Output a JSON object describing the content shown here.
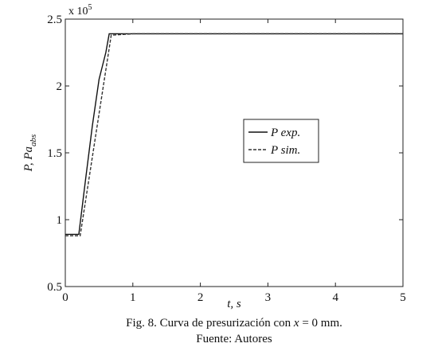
{
  "chart_data": {
    "type": "line",
    "xlabel": "t, s",
    "ylabel": "P, Pa",
    "ylabel_sub": "abs",
    "y_multiplier": "x 10",
    "y_multiplier_exp": "5",
    "xlim": [
      0,
      5
    ],
    "xticks": [
      0,
      1,
      2,
      3,
      4,
      5
    ],
    "ylim": [
      0.5,
      2.5
    ],
    "yticks": [
      0.5,
      1,
      1.5,
      2,
      2.5
    ],
    "grid": false,
    "legend": "center",
    "series": [
      {
        "name": "P exp.",
        "color": "#111111",
        "dash": "solid",
        "x": [
          0,
          0.2,
          0.3,
          0.4,
          0.5,
          0.6,
          0.65,
          1,
          5
        ],
        "values": [
          0.89,
          0.89,
          1.3,
          1.7,
          2.05,
          2.25,
          2.39,
          2.39,
          2.39
        ]
      },
      {
        "name": "P sim.",
        "color": "#333333",
        "dash": "dashed",
        "x": [
          0,
          0.22,
          0.68,
          1,
          5
        ],
        "values": [
          0.88,
          0.88,
          2.38,
          2.39,
          2.39
        ]
      }
    ],
    "caption_parts": [
      "Fig. 8. Curva de presurización con ",
      "x",
      " = 0 mm."
    ],
    "source": "Fuente: Autores"
  }
}
